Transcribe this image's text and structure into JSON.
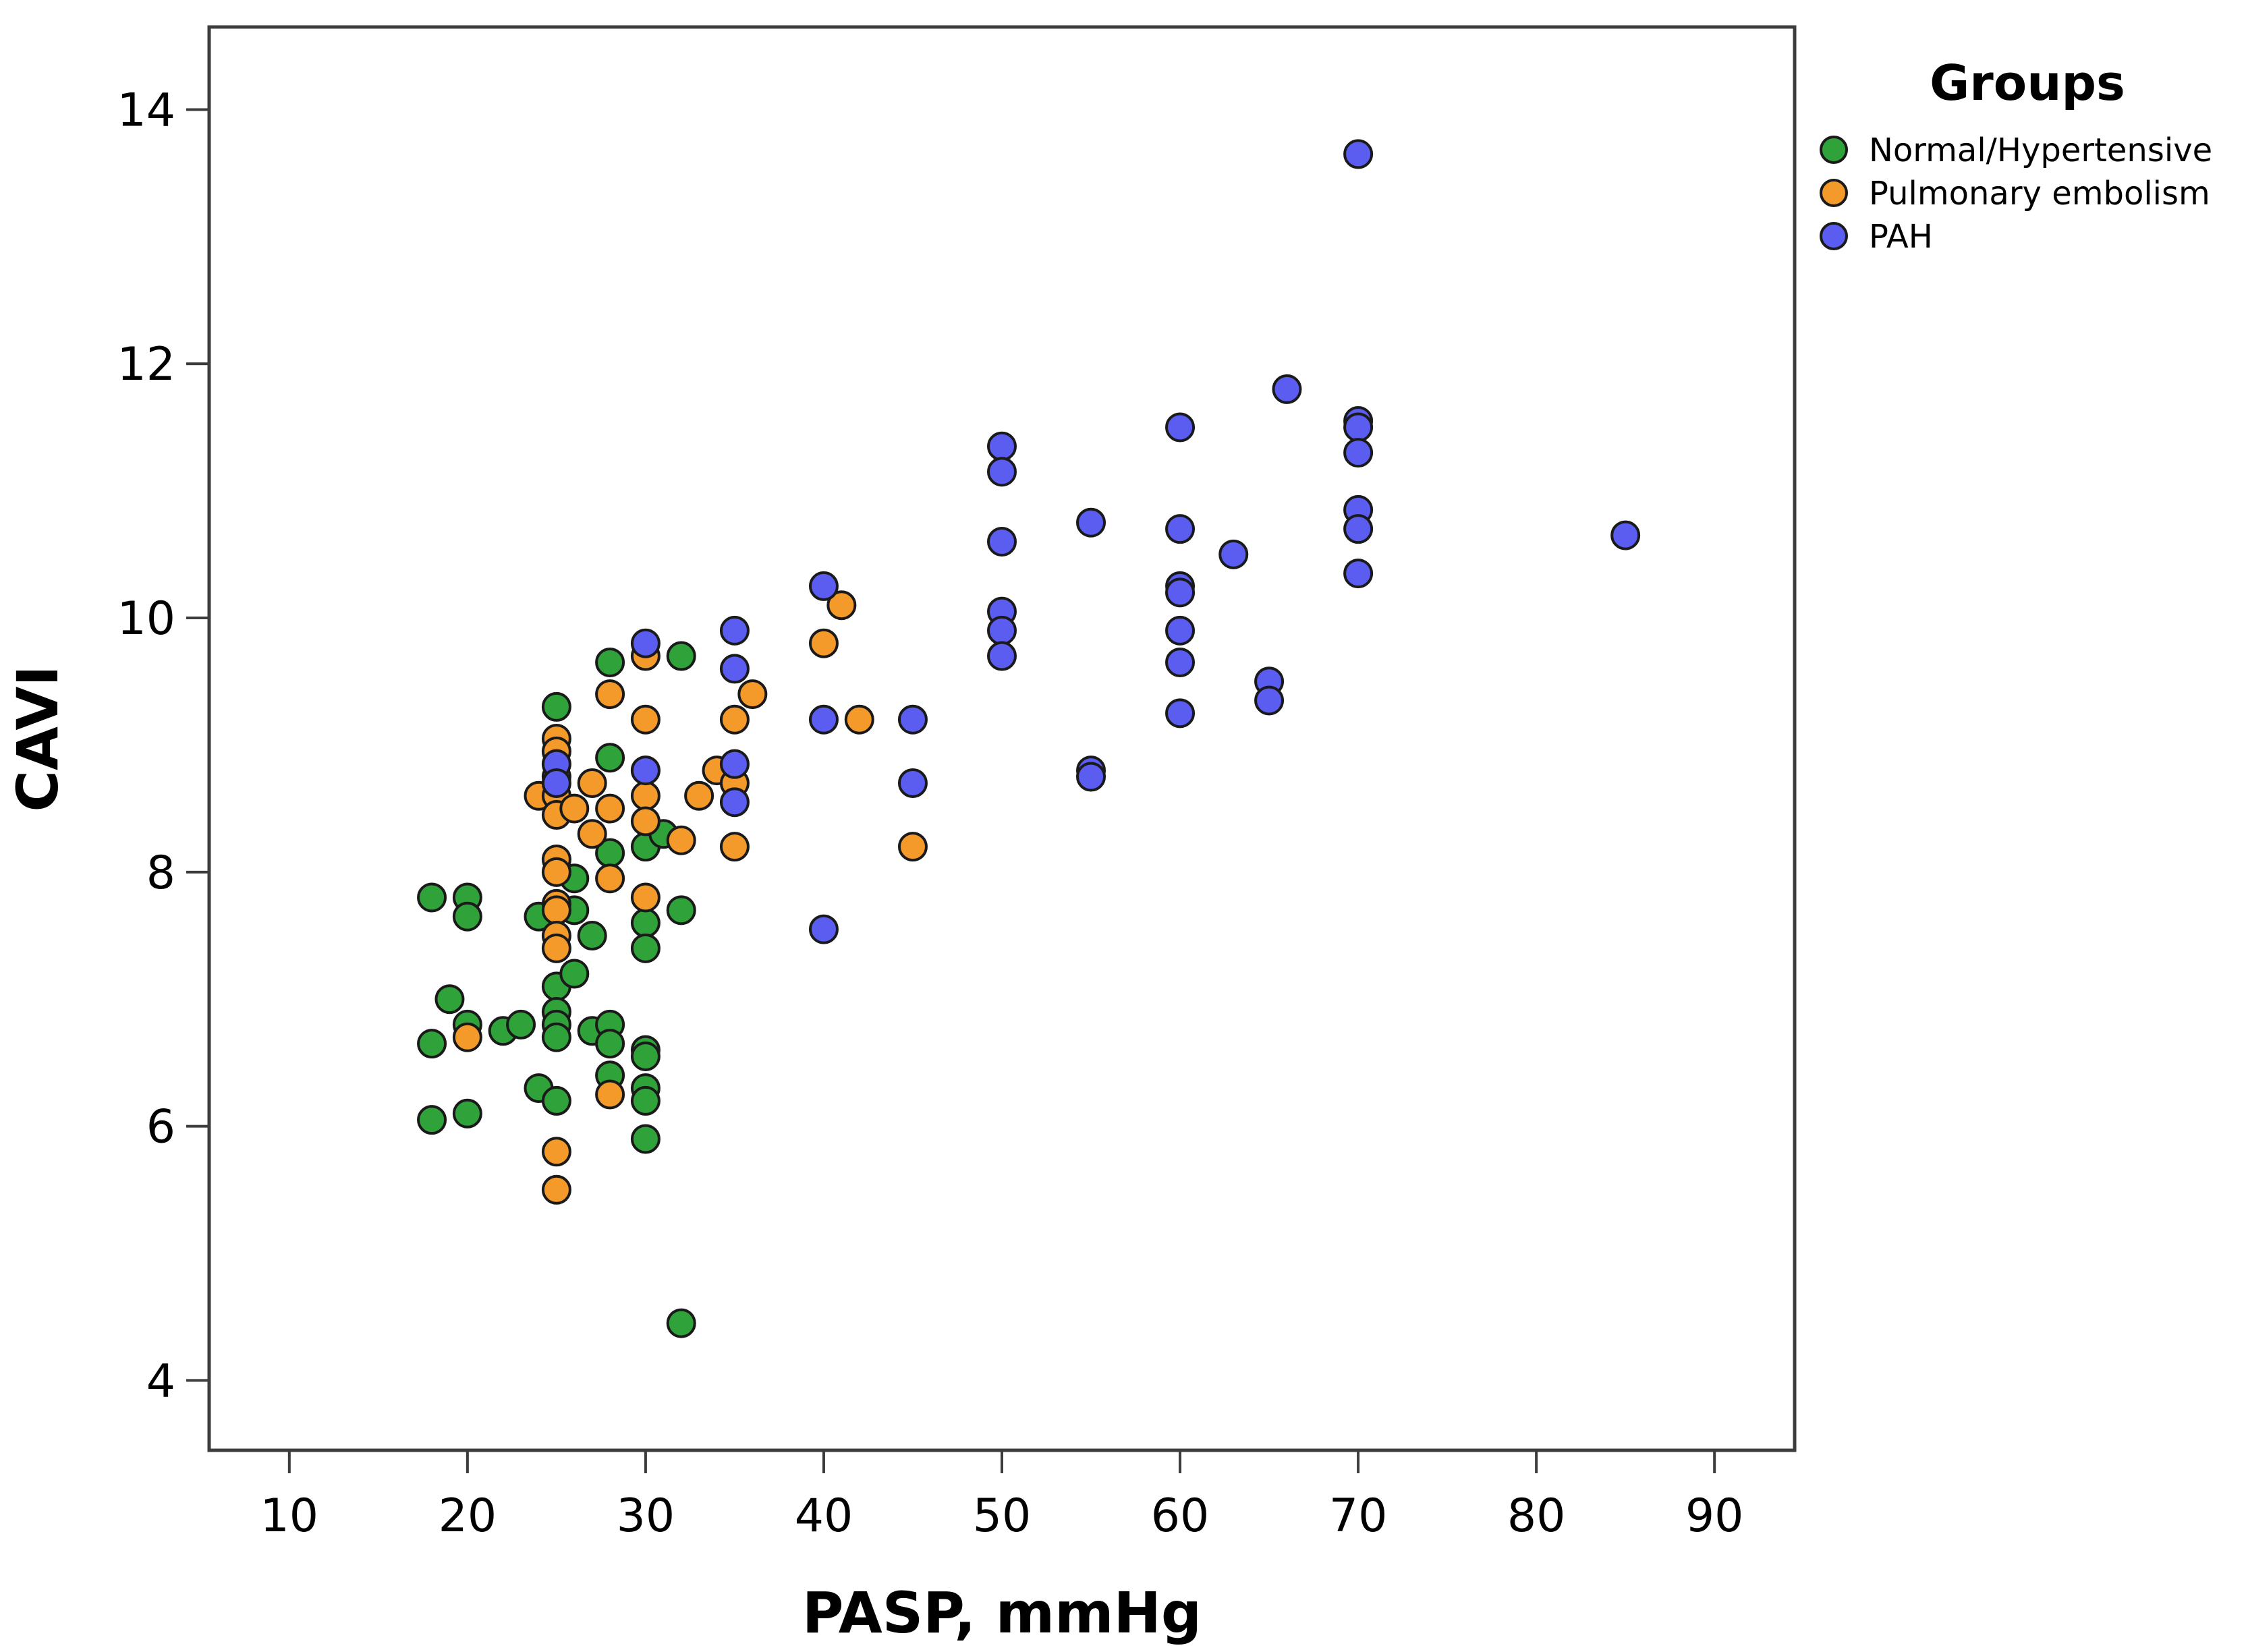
{
  "chart_data": {
    "type": "scatter",
    "title": "",
    "xlabel": "PASP, mmHg",
    "ylabel": "CAVI",
    "xlim": [
      5.5,
      94.5
    ],
    "ylim": [
      3.45,
      14.65
    ],
    "xticks": [
      10,
      20,
      30,
      40,
      50,
      60,
      70,
      80,
      90
    ],
    "yticks": [
      4,
      6,
      8,
      10,
      12,
      14
    ],
    "grid": false,
    "legend": {
      "title": "Groups",
      "position": "top-right-outside"
    },
    "series": [
      {
        "name": "Normal/Hypertensive",
        "color": "#2fa33a",
        "points": [
          [
            18,
            7.8
          ],
          [
            18,
            6.65
          ],
          [
            18,
            6.05
          ],
          [
            19,
            7.0
          ],
          [
            20,
            7.8
          ],
          [
            20,
            7.65
          ],
          [
            20,
            6.8
          ],
          [
            20,
            6.1
          ],
          [
            22,
            6.75
          ],
          [
            23,
            6.8
          ],
          [
            24,
            7.65
          ],
          [
            24,
            6.3
          ],
          [
            25,
            9.3
          ],
          [
            25,
            7.1
          ],
          [
            25,
            6.9
          ],
          [
            25,
            6.8
          ],
          [
            25,
            6.7
          ],
          [
            25,
            6.2
          ],
          [
            26,
            7.95
          ],
          [
            26,
            7.7
          ],
          [
            26,
            7.2
          ],
          [
            27,
            7.5
          ],
          [
            27,
            6.75
          ],
          [
            28,
            9.65
          ],
          [
            28,
            8.9
          ],
          [
            28,
            8.15
          ],
          [
            28,
            6.8
          ],
          [
            28,
            6.65
          ],
          [
            28,
            6.4
          ],
          [
            30,
            8.8
          ],
          [
            30,
            8.2
          ],
          [
            30,
            7.6
          ],
          [
            30,
            7.4
          ],
          [
            30,
            6.6
          ],
          [
            30,
            6.55
          ],
          [
            30,
            6.3
          ],
          [
            30,
            6.2
          ],
          [
            30,
            5.9
          ],
          [
            31,
            8.3
          ],
          [
            32,
            9.7
          ],
          [
            32,
            7.7
          ],
          [
            32,
            4.45
          ]
        ]
      },
      {
        "name": "Pulmonary embolism",
        "color": "#f39a2a",
        "points": [
          [
            20,
            6.7
          ],
          [
            24,
            8.6
          ],
          [
            25,
            9.05
          ],
          [
            25,
            8.95
          ],
          [
            25,
            8.75
          ],
          [
            25,
            8.6
          ],
          [
            25,
            8.45
          ],
          [
            25,
            8.1
          ],
          [
            25,
            8.0
          ],
          [
            25,
            7.75
          ],
          [
            25,
            7.7
          ],
          [
            25,
            7.5
          ],
          [
            25,
            7.4
          ],
          [
            25,
            5.8
          ],
          [
            25,
            5.5
          ],
          [
            26,
            8.5
          ],
          [
            27,
            8.7
          ],
          [
            27,
            8.3
          ],
          [
            28,
            9.4
          ],
          [
            28,
            8.5
          ],
          [
            28,
            7.95
          ],
          [
            28,
            6.25
          ],
          [
            30,
            9.7
          ],
          [
            30,
            9.2
          ],
          [
            30,
            8.6
          ],
          [
            30,
            8.4
          ],
          [
            30,
            7.8
          ],
          [
            32,
            8.25
          ],
          [
            33,
            8.6
          ],
          [
            34,
            8.8
          ],
          [
            35,
            9.2
          ],
          [
            35,
            8.7
          ],
          [
            35,
            8.2
          ],
          [
            36,
            9.4
          ],
          [
            40,
            9.8
          ],
          [
            41,
            10.1
          ],
          [
            42,
            9.2
          ],
          [
            45,
            8.2
          ]
        ]
      },
      {
        "name": "PAH",
        "color": "#5b5cf0",
        "points": [
          [
            25,
            8.85
          ],
          [
            25,
            8.7
          ],
          [
            30,
            9.8
          ],
          [
            30,
            8.8
          ],
          [
            35,
            9.9
          ],
          [
            35,
            9.6
          ],
          [
            35,
            8.85
          ],
          [
            35,
            8.55
          ],
          [
            40,
            10.25
          ],
          [
            40,
            9.2
          ],
          [
            40,
            7.55
          ],
          [
            45,
            9.2
          ],
          [
            45,
            8.7
          ],
          [
            50,
            11.35
          ],
          [
            50,
            11.15
          ],
          [
            50,
            10.6
          ],
          [
            50,
            10.05
          ],
          [
            50,
            9.9
          ],
          [
            50,
            9.7
          ],
          [
            55,
            10.75
          ],
          [
            55,
            8.8
          ],
          [
            55,
            8.75
          ],
          [
            60,
            11.5
          ],
          [
            60,
            10.7
          ],
          [
            60,
            10.25
          ],
          [
            60,
            10.2
          ],
          [
            60,
            9.9
          ],
          [
            60,
            9.65
          ],
          [
            60,
            9.25
          ],
          [
            63,
            10.5
          ],
          [
            65,
            9.5
          ],
          [
            65,
            9.35
          ],
          [
            66,
            11.8
          ],
          [
            70,
            13.65
          ],
          [
            70,
            11.55
          ],
          [
            70,
            11.5
          ],
          [
            70,
            11.3
          ],
          [
            70,
            10.85
          ],
          [
            70,
            10.7
          ],
          [
            70,
            10.35
          ],
          [
            85,
            10.65
          ]
        ]
      }
    ]
  }
}
